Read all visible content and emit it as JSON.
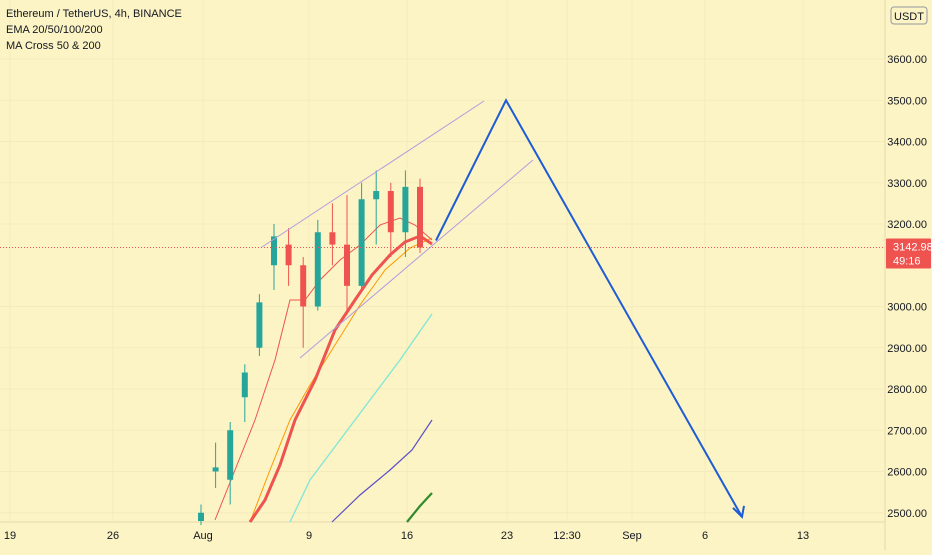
{
  "legend": {
    "symbol_line": "Ethereum / TetherUS, 4h, BINANCE",
    "indicator_1": "EMA 20/50/100/200",
    "indicator_2": "MA Cross 50 & 200"
  },
  "price_axis": {
    "currency_badge": "USDT",
    "ticks": [
      "3600.00",
      "3500.00",
      "3400.00",
      "3300.00",
      "3200.00",
      "3000.00",
      "2900.00",
      "2800.00",
      "2700.00",
      "2600.00",
      "2500.00"
    ]
  },
  "current_price": {
    "price_label": "3142.98",
    "countdown_label": "49:16"
  },
  "time_axis": {
    "ticks": [
      "19",
      "26",
      "Aug",
      "9",
      "16",
      "23",
      "12:30",
      "Sep",
      "6",
      "13"
    ]
  },
  "colors": {
    "background": "#fcf4c4",
    "candle_up": "#26a69a",
    "candle_down": "#ef5350",
    "ema20": "#ef5350",
    "ema50": "#ff9800",
    "ema100": "#7fe6d8",
    "ema200": "#5b4fc7",
    "ma_cross": "#2e8b2e",
    "channel": "#b49be0",
    "projection": "#1e5bd6",
    "price_tag": "#ef5350"
  },
  "chart_data": {
    "type": "candlestick",
    "symbol": "Ethereum / TetherUS",
    "interval": "4h",
    "exchange": "BINANCE",
    "ylim": [
      2480,
      3700
    ],
    "y_ticks": [
      2500,
      2600,
      2700,
      2800,
      2900,
      3000,
      3200,
      3300,
      3400,
      3500,
      3600
    ],
    "x_ticks": [
      "19",
      "26",
      "Aug",
      "9",
      "16",
      "23",
      "12:30",
      "Sep",
      "6",
      "13"
    ],
    "last_price": 3142.98,
    "candle_series": [
      {
        "date": "Aug 2",
        "open": 2480,
        "high": 2520,
        "low": 2470,
        "close": 2500
      },
      {
        "date": "Aug 3",
        "open": 2600,
        "high": 2670,
        "low": 2560,
        "close": 2610
      },
      {
        "date": "Aug 4",
        "open": 2580,
        "high": 2720,
        "low": 2520,
        "close": 2700
      },
      {
        "date": "Aug 5",
        "open": 2780,
        "high": 2860,
        "low": 2720,
        "close": 2840
      },
      {
        "date": "Aug 6",
        "open": 2900,
        "high": 3030,
        "low": 2880,
        "close": 3010
      },
      {
        "date": "Aug 7",
        "open": 3100,
        "high": 3200,
        "low": 3040,
        "close": 3170
      },
      {
        "date": "Aug 8",
        "open": 3150,
        "high": 3190,
        "low": 3050,
        "close": 3100
      },
      {
        "date": "Aug 9",
        "open": 3100,
        "high": 3120,
        "low": 2900,
        "close": 3000
      },
      {
        "date": "Aug 10",
        "open": 3000,
        "high": 3210,
        "low": 2990,
        "close": 3180
      },
      {
        "date": "Aug 11",
        "open": 3180,
        "high": 3250,
        "low": 3100,
        "close": 3150
      },
      {
        "date": "Aug 12",
        "open": 3150,
        "high": 3270,
        "low": 2980,
        "close": 3050
      },
      {
        "date": "Aug 13",
        "open": 3050,
        "high": 3300,
        "low": 3040,
        "close": 3260
      },
      {
        "date": "Aug 14",
        "open": 3260,
        "high": 3330,
        "low": 3150,
        "close": 3280
      },
      {
        "date": "Aug 15",
        "open": 3280,
        "high": 3300,
        "low": 3120,
        "close": 3180
      },
      {
        "date": "Aug 16",
        "open": 3180,
        "high": 3330,
        "low": 3120,
        "close": 3290
      },
      {
        "date": "Aug 17",
        "open": 3290,
        "high": 3310,
        "low": 3130,
        "close": 3142.98
      }
    ],
    "projection_path": [
      {
        "date": "Aug 18",
        "value": 3160
      },
      {
        "date": "Aug 23",
        "value": 3500
      },
      {
        "date": "Sep 8",
        "value": 2490
      }
    ]
  }
}
